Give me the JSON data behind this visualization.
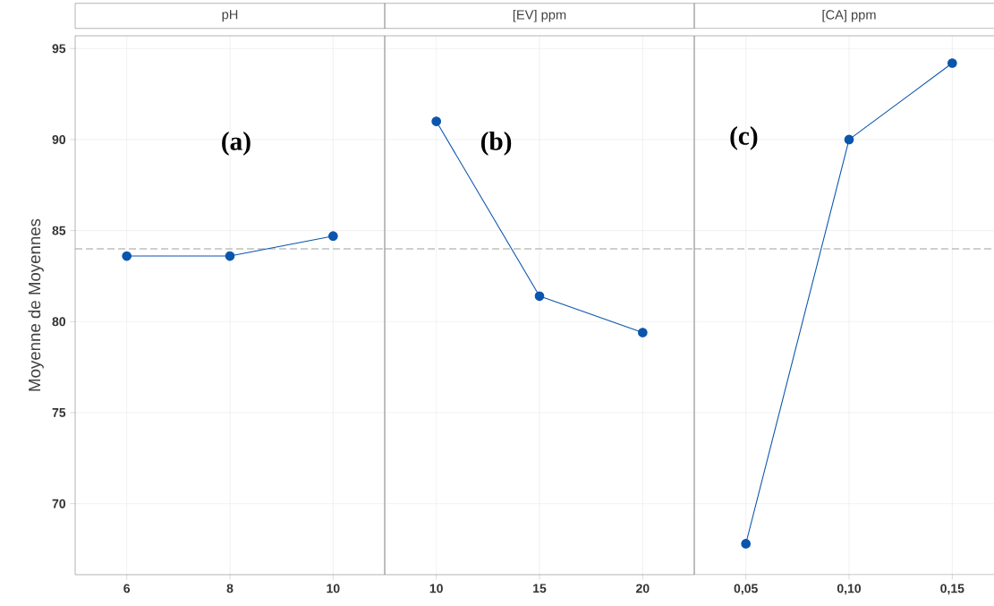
{
  "chart_data": [
    {
      "type": "line",
      "title": "pH",
      "ylabel": "Moyenne de Moyennes",
      "categories": [
        "6",
        "8",
        "10"
      ],
      "series": [
        {
          "color": "#0a55ad",
          "values": [
            83.6,
            83.6,
            84.7
          ]
        }
      ],
      "ylim": [
        66.1,
        95.7
      ],
      "yticks": [
        70,
        75,
        80,
        85,
        90,
        95
      ],
      "grid": true,
      "marker": "circle",
      "ref_lines": [
        {
          "axis": "y",
          "value": 84.0,
          "color": "#a0a0a0",
          "line_style": "dashed"
        }
      ],
      "annotations": [
        "(a)"
      ]
    },
    {
      "type": "line",
      "title": "[EV] ppm",
      "categories": [
        "10",
        "15",
        "20"
      ],
      "series": [
        {
          "color": "#0a55ad",
          "values": [
            91.0,
            81.4,
            79.4
          ]
        }
      ],
      "ylim": [
        66.1,
        95.7
      ],
      "yticks": [
        70,
        75,
        80,
        85,
        90,
        95
      ],
      "grid": true,
      "marker": "circle",
      "tick_labels": "x",
      "ref_lines": [
        {
          "axis": "y",
          "value": 84.0,
          "color": "#a0a0a0",
          "line_style": "dashed"
        }
      ],
      "annotations": [
        "(b)"
      ]
    },
    {
      "type": "line",
      "title": "[CA] ppm",
      "categories": [
        "0,05",
        "0,10",
        "0,15"
      ],
      "series": [
        {
          "color": "#0a55ad",
          "values": [
            67.8,
            90.0,
            94.2
          ]
        }
      ],
      "ylim": [
        66.1,
        95.7
      ],
      "yticks": [
        70,
        75,
        80,
        85,
        90,
        95
      ],
      "grid": true,
      "marker": "circle",
      "tick_labels": "x",
      "ref_lines": [
        {
          "axis": "y",
          "value": 84.0,
          "color": "#a0a0a0",
          "line_style": "dashed"
        }
      ],
      "annotations": [
        "(c)"
      ]
    }
  ]
}
